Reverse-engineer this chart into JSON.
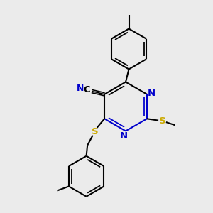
{
  "bg_color": "#ebebeb",
  "bond_color": "#000000",
  "n_color": "#0000cc",
  "s_color": "#ccaa00",
  "lw": 1.5,
  "fs": 9.5,
  "fig_width": 3.0,
  "fig_height": 3.0,
  "dpi": 100,
  "xlim": [
    0,
    10
  ],
  "ylim": [
    0,
    10
  ]
}
